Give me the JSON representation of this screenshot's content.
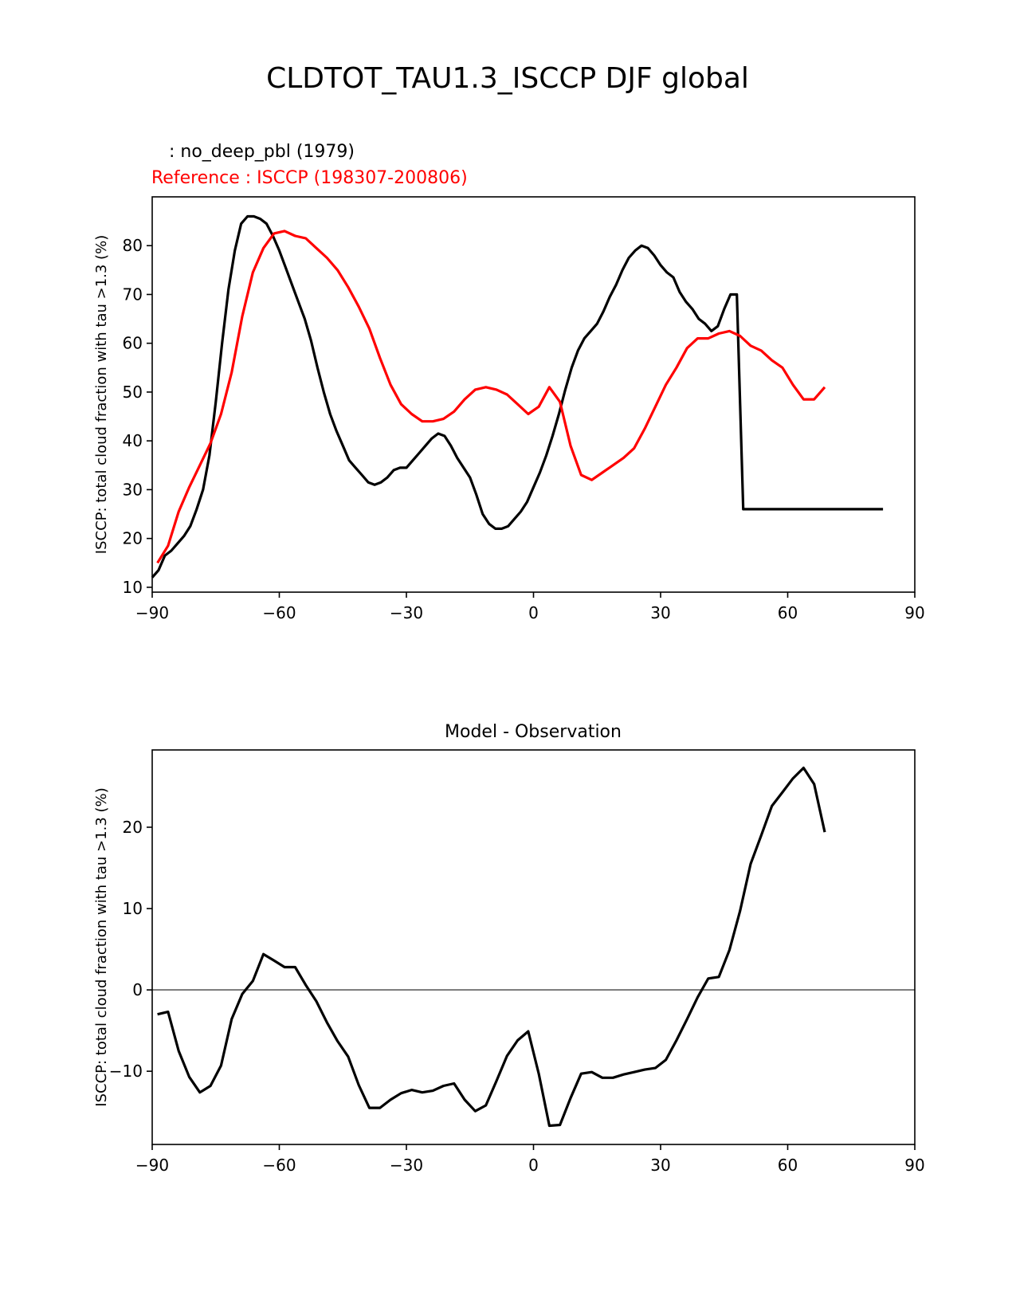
{
  "figure_title": "CLDTOT_TAU1.3_ISCCP DJF global",
  "colors": {
    "test": "#000000",
    "reference": "#ff0000",
    "diff": "#000000",
    "zero_line": "#808080"
  },
  "chart_data": [
    {
      "type": "line",
      "test_label": " : no_deep_pbl (1979)",
      "reference_label": "Reference : ISCCP (198307-200806)",
      "xlabel": "",
      "ylabel": "ISCCP: total cloud fraction with tau >1.3 (%)",
      "xlim": [
        -90,
        90
      ],
      "ylim": [
        9,
        90
      ],
      "xticks": [
        -90,
        -60,
        -30,
        0,
        30,
        60,
        90
      ],
      "xtick_labels": [
        "−90",
        "−60",
        "−30",
        "0",
        "30",
        "60",
        "90"
      ],
      "yticks": [
        10,
        20,
        30,
        40,
        50,
        60,
        70,
        80
      ],
      "ytick_labels": [
        "10",
        "20",
        "30",
        "40",
        "50",
        "60",
        "70",
        "80"
      ],
      "series": [
        {
          "name": "no_deep_pbl (1979)",
          "color": "#000000",
          "x": [
            -90,
            -88.5,
            -87,
            -85.5,
            -84,
            -82.5,
            -81,
            -79.5,
            -78,
            -76.5,
            -75,
            -73.5,
            -72,
            -70.5,
            -69,
            -67.5,
            -66,
            -64.5,
            -63,
            -61.5,
            -60,
            -58.5,
            -57,
            -55.5,
            -54,
            -52.5,
            -51,
            -49.5,
            -48,
            -46.5,
            -45,
            -43.5,
            -42,
            -40.5,
            -39,
            -37.5,
            -36,
            -34.5,
            -33,
            -31.5,
            -30,
            -28.5,
            -27,
            -25.5,
            -24,
            -22.5,
            -21,
            -19.5,
            -18,
            -16.5,
            -15,
            -13.5,
            -12,
            -10.5,
            -9,
            -7.5,
            -6,
            -4.5,
            -3,
            -1.5,
            0,
            1.5,
            3,
            4.5,
            6,
            7.5,
            9,
            10.5,
            12,
            13.5,
            15,
            16.5,
            18,
            19.5,
            21,
            22.5,
            24,
            25.5,
            27,
            28.5,
            30,
            31.5,
            33,
            34.5,
            36,
            37.5,
            39,
            40.5,
            42,
            43.5,
            45,
            46.5,
            48,
            49.5,
            51,
            52.5,
            54,
            55.5,
            57,
            58.5,
            60,
            61.5,
            63,
            64.5,
            66,
            67.5,
            69,
            70.5,
            72,
            73.5,
            75,
            76.5,
            78,
            79.5,
            81,
            82.5
          ],
          "values": [
            12.0,
            13.5,
            16.5,
            17.5,
            19.0,
            20.5,
            22.5,
            26.0,
            30.0,
            37.0,
            48.0,
            60.0,
            71.0,
            79.0,
            84.5,
            86.0,
            86.0,
            85.5,
            84.5,
            82.0,
            79.0,
            75.5,
            72.0,
            68.5,
            65.0,
            60.5,
            55.0,
            50.0,
            45.5,
            42.0,
            39.0,
            36.0,
            34.5,
            33.0,
            31.5,
            31.0,
            31.5,
            32.5,
            34.0,
            34.5,
            34.5,
            36.0,
            37.5,
            39.0,
            40.5,
            41.5,
            41.0,
            39.0,
            36.5,
            34.5,
            32.5,
            29.0,
            25.0,
            23.0,
            22.0,
            22.0,
            22.5,
            24.0,
            25.5,
            27.5,
            30.5,
            33.5,
            37.0,
            41.0,
            45.5,
            50.5,
            55.0,
            58.5,
            61.0,
            62.5,
            64.0,
            66.5,
            69.5,
            72.0,
            75.0,
            77.5,
            79.0,
            80.0,
            79.5,
            78.0,
            76.0,
            74.5,
            73.5,
            70.5,
            68.5,
            67.0,
            65.0,
            64.0,
            62.5,
            63.5,
            67.0,
            70.0,
            70.0,
            26.0,
            26.0,
            26.0,
            26.0,
            26.0,
            26.0,
            26.0,
            26.0,
            26.0,
            26.0,
            26.0,
            26.0,
            26.0,
            26.0,
            26.0,
            26.0,
            26.0,
            26.0,
            26.0,
            26.0,
            26.0,
            26.0,
            26.0
          ]
        },
        {
          "name": "ISCCP (198307-200806)",
          "color": "#ff0000",
          "x": [
            -88.75,
            -86.25,
            -83.75,
            -81.25,
            -78.75,
            -76.25,
            -73.75,
            -71.25,
            -68.75,
            -66.25,
            -63.75,
            -61.25,
            -58.75,
            -56.25,
            -53.75,
            -51.25,
            -48.75,
            -46.25,
            -43.75,
            -41.25,
            -38.75,
            -36.25,
            -33.75,
            -31.25,
            -28.75,
            -26.25,
            -23.75,
            -21.25,
            -18.75,
            -16.25,
            -13.75,
            -11.25,
            -8.75,
            -6.25,
            -3.75,
            -1.25,
            1.25,
            3.75,
            6.25,
            8.75,
            11.25,
            13.75,
            16.25,
            18.75,
            21.25,
            23.75,
            26.25,
            28.75,
            31.25,
            33.75,
            36.25,
            38.75,
            41.25,
            43.75,
            46.25,
            48.75,
            51.25,
            53.75,
            56.25,
            58.75,
            61.25,
            63.75,
            66.25,
            68.75
          ],
          "values": [
            15.0,
            18.5,
            25.5,
            30.5,
            35.0,
            39.5,
            45.5,
            54.0,
            65.5,
            74.5,
            79.5,
            82.5,
            83.0,
            82.0,
            81.5,
            79.5,
            77.5,
            75.0,
            71.5,
            67.5,
            63.0,
            57.0,
            51.5,
            47.5,
            45.5,
            44.0,
            44.0,
            44.5,
            46.0,
            48.5,
            50.5,
            51.0,
            50.5,
            49.5,
            47.5,
            45.5,
            47.0,
            51.0,
            48.0,
            39.0,
            33.0,
            32.0,
            33.5,
            35.0,
            36.5,
            38.5,
            42.5,
            47.0,
            51.5,
            55.0,
            59.0,
            61.0,
            61.0,
            62.0,
            62.5,
            61.5,
            59.5,
            58.5,
            56.5,
            55.0,
            51.5,
            48.5,
            48.5,
            51.0
          ]
        }
      ]
    },
    {
      "type": "line",
      "title": "Model - Observation",
      "xlabel": "",
      "ylabel": "ISCCP: total cloud fraction with tau >1.3 (%)",
      "xlim": [
        -90,
        90
      ],
      "ylim": [
        -19,
        29.5
      ],
      "xticks": [
        -90,
        -60,
        -30,
        0,
        30,
        60,
        90
      ],
      "xtick_labels": [
        "−90",
        "−60",
        "−30",
        "0",
        "30",
        "60",
        "90"
      ],
      "yticks": [
        -10,
        0,
        10,
        20
      ],
      "ytick_labels": [
        "−10",
        "0",
        "10",
        "20"
      ],
      "zero_line": 0,
      "series": [
        {
          "name": "Model - Observation",
          "color": "#000000",
          "x": [
            -88.75,
            -86.25,
            -83.75,
            -81.25,
            -78.75,
            -76.25,
            -73.75,
            -71.25,
            -68.75,
            -66.25,
            -63.75,
            -61.25,
            -58.75,
            -56.25,
            -53.75,
            -51.25,
            -48.75,
            -46.25,
            -43.75,
            -41.25,
            -38.75,
            -36.25,
            -33.75,
            -31.25,
            -28.75,
            -26.25,
            -23.75,
            -21.25,
            -18.75,
            -16.25,
            -13.75,
            -11.25,
            -8.75,
            -6.25,
            -3.75,
            -1.25,
            1.25,
            3.75,
            6.25,
            8.75,
            11.25,
            13.75,
            16.25,
            18.75,
            21.25,
            23.75,
            26.25,
            28.75,
            31.25,
            33.75,
            36.25,
            38.75,
            41.25,
            43.75,
            46.25,
            48.75,
            51.25,
            53.75,
            56.25,
            58.75,
            61.25,
            63.75,
            66.25,
            68.75
          ],
          "values": [
            -3.0,
            -2.7,
            -7.5,
            -10.7,
            -12.6,
            -11.8,
            -9.3,
            -3.6,
            -0.5,
            1.1,
            4.4,
            3.6,
            2.8,
            2.8,
            0.6,
            -1.4,
            -4.0,
            -6.3,
            -8.2,
            -11.7,
            -14.5,
            -14.5,
            -13.5,
            -12.7,
            -12.3,
            -12.6,
            -12.4,
            -11.8,
            -11.5,
            -13.5,
            -14.9,
            -14.2,
            -11.2,
            -8.1,
            -6.2,
            -5.1,
            -10.3,
            -16.7,
            -16.6,
            -13.3,
            -10.3,
            -10.1,
            -10.8,
            -10.8,
            -10.4,
            -10.1,
            -9.8,
            -9.6,
            -8.6,
            -6.2,
            -3.6,
            -0.9,
            1.4,
            1.6,
            4.9,
            9.7,
            15.5,
            19.0,
            22.6,
            24.3,
            26.0,
            27.3,
            25.3,
            19.4
          ]
        }
      ]
    }
  ]
}
